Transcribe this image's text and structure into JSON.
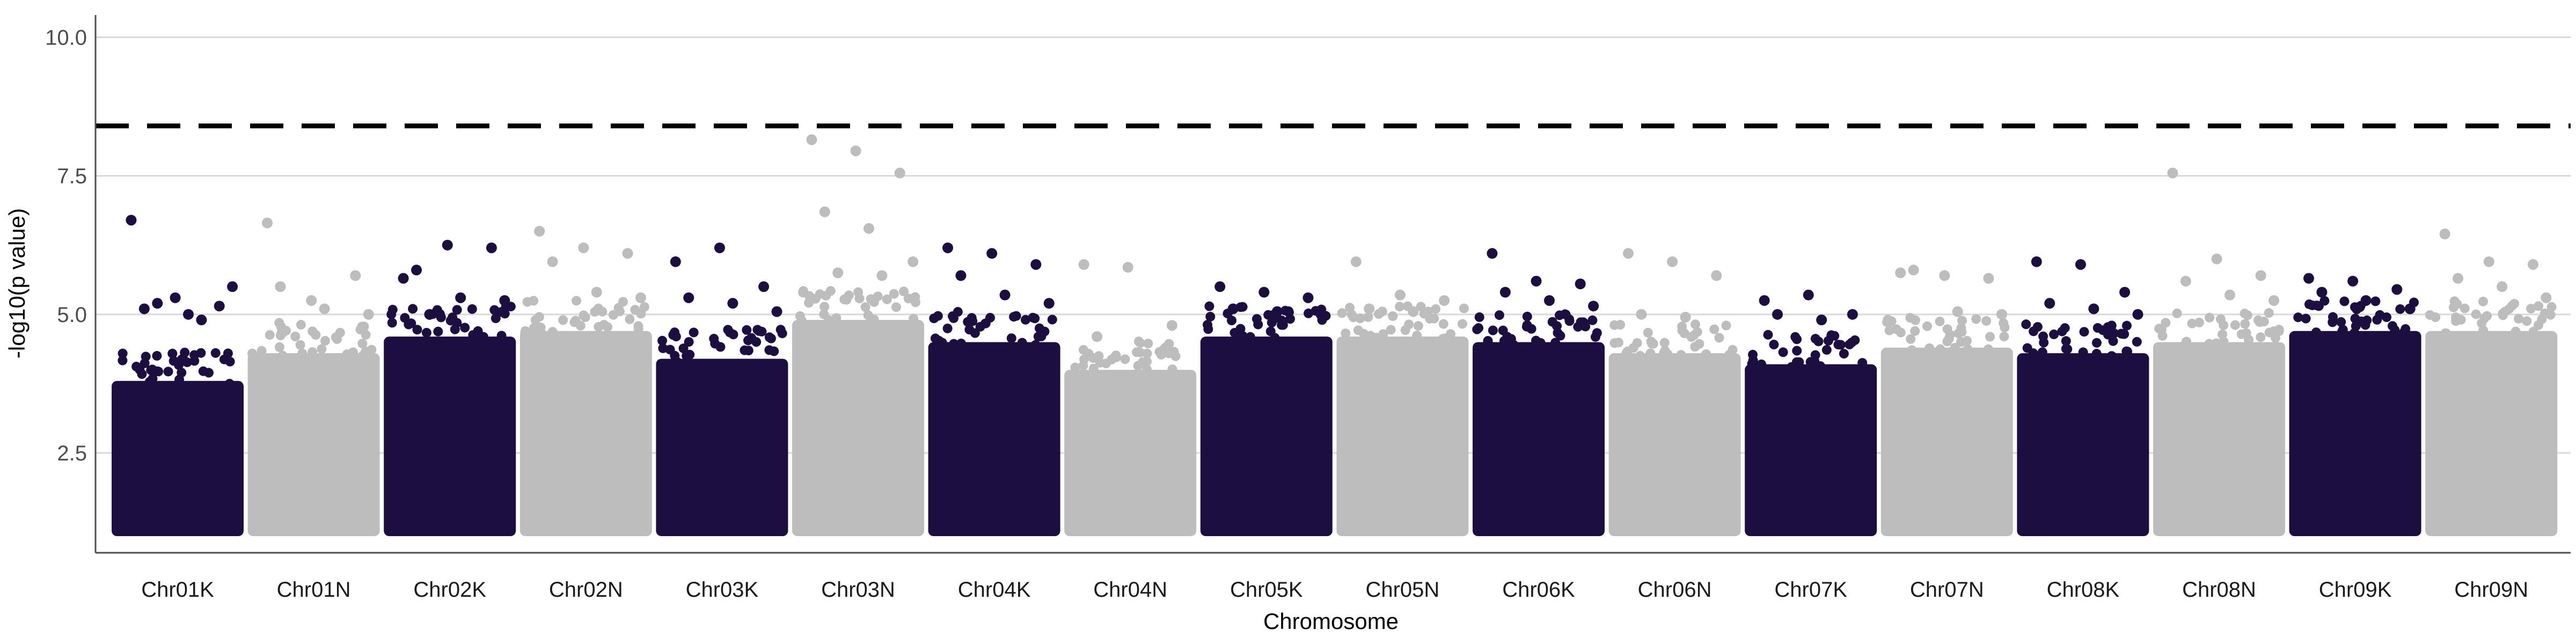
{
  "chart_data": {
    "type": "scatter",
    "title": "",
    "xlabel": "Chromosome",
    "ylabel": "-log10(p value)",
    "ylim": [
      0.7,
      10.4
    ],
    "yticks": [
      2.5,
      5.0,
      7.5,
      10.0
    ],
    "ytick_labels": [
      "2.5",
      "5.0",
      "7.5",
      "10.0"
    ],
    "grid": "horizontal",
    "legend": "none",
    "threshold": {
      "value": 8.4,
      "style": "dashed",
      "color": "#000000"
    },
    "colors": {
      "dark": "#1c0f40",
      "light": "#bdbdbd",
      "grid": "#d9d9d9",
      "axis": "#4d4d4d"
    },
    "chromosomes": [
      {
        "name": "Chr01K",
        "color": "dark",
        "base_top": 3.8,
        "outliers": [
          6.7,
          5.3,
          5.15,
          5.1,
          5.0,
          5.5,
          5.2,
          4.9
        ]
      },
      {
        "name": "Chr01N",
        "color": "light",
        "base_top": 4.3,
        "outliers": [
          6.65,
          5.25,
          5.7,
          5.5,
          5.1,
          5.0
        ]
      },
      {
        "name": "Chr02K",
        "color": "dark",
        "base_top": 4.6,
        "outliers": [
          5.65,
          6.25,
          6.2,
          5.8,
          5.3,
          5.25,
          5.0
        ]
      },
      {
        "name": "Chr02N",
        "color": "light",
        "base_top": 4.7,
        "outliers": [
          6.5,
          6.2,
          6.1,
          5.95,
          5.4,
          5.3
        ]
      },
      {
        "name": "Chr03K",
        "color": "dark",
        "base_top": 4.2,
        "outliers": [
          5.95,
          6.2,
          5.5,
          5.3,
          5.2,
          5.05
        ]
      },
      {
        "name": "Chr03N",
        "color": "light",
        "base_top": 4.9,
        "outliers": [
          8.15,
          7.95,
          7.55,
          6.85,
          6.55,
          5.95,
          5.75,
          5.7
        ]
      },
      {
        "name": "Chr04K",
        "color": "dark",
        "base_top": 4.5,
        "outliers": [
          6.2,
          6.1,
          5.9,
          5.7,
          5.35,
          5.2
        ]
      },
      {
        "name": "Chr04N",
        "color": "light",
        "base_top": 4.0,
        "outliers": [
          5.9,
          5.85,
          4.8,
          4.6
        ]
      },
      {
        "name": "Chr05K",
        "color": "dark",
        "base_top": 4.6,
        "outliers": [
          5.5,
          5.4,
          5.3,
          5.1,
          5.05,
          5.0
        ]
      },
      {
        "name": "Chr05N",
        "color": "light",
        "base_top": 4.6,
        "outliers": [
          5.95,
          5.35,
          5.25,
          5.1,
          5.05
        ]
      },
      {
        "name": "Chr06K",
        "color": "dark",
        "base_top": 4.5,
        "outliers": [
          6.1,
          5.6,
          5.55,
          5.4,
          5.25,
          5.15
        ]
      },
      {
        "name": "Chr06N",
        "color": "light",
        "base_top": 4.3,
        "outliers": [
          6.1,
          5.95,
          5.7,
          5.0,
          4.95
        ]
      },
      {
        "name": "Chr07K",
        "color": "dark",
        "base_top": 4.1,
        "outliers": [
          5.25,
          5.35,
          5.0,
          5.0,
          4.9
        ]
      },
      {
        "name": "Chr07N",
        "color": "light",
        "base_top": 4.4,
        "outliers": [
          5.75,
          5.7,
          5.65,
          5.8,
          5.05,
          5.0
        ]
      },
      {
        "name": "Chr08K",
        "color": "dark",
        "base_top": 4.3,
        "outliers": [
          5.95,
          5.9,
          5.4,
          5.2,
          5.1,
          5.0
        ]
      },
      {
        "name": "Chr08N",
        "color": "light",
        "base_top": 4.5,
        "outliers": [
          7.55,
          6.0,
          5.7,
          5.6,
          5.35,
          5.25
        ]
      },
      {
        "name": "Chr09K",
        "color": "dark",
        "base_top": 4.7,
        "outliers": [
          5.65,
          5.6,
          5.45,
          5.4,
          5.25,
          5.1
        ]
      },
      {
        "name": "Chr09N",
        "color": "light",
        "base_top": 4.7,
        "outliers": [
          6.45,
          5.95,
          5.9,
          5.65,
          5.5,
          5.3
        ]
      }
    ]
  }
}
